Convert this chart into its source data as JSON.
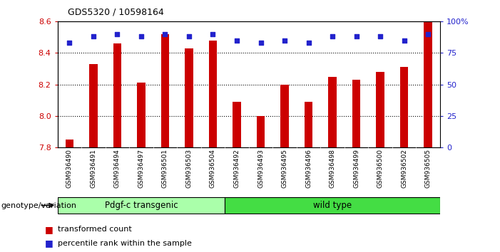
{
  "title": "GDS5320 / 10598164",
  "categories": [
    "GSM936490",
    "GSM936491",
    "GSM936494",
    "GSM936497",
    "GSM936501",
    "GSM936503",
    "GSM936504",
    "GSM936492",
    "GSM936493",
    "GSM936495",
    "GSM936496",
    "GSM936498",
    "GSM936499",
    "GSM936500",
    "GSM936502",
    "GSM936505"
  ],
  "bar_values": [
    7.85,
    8.33,
    8.46,
    8.21,
    8.52,
    8.43,
    8.48,
    8.09,
    8.0,
    8.2,
    8.09,
    8.25,
    8.23,
    8.28,
    8.31,
    8.6
  ],
  "dot_pct": [
    83,
    88,
    90,
    88,
    90,
    88,
    90,
    85,
    83,
    85,
    83,
    88,
    88,
    88,
    85,
    90
  ],
  "ylim_left": [
    7.8,
    8.6
  ],
  "ylim_right": [
    0,
    100
  ],
  "yticks_left": [
    7.8,
    8.0,
    8.2,
    8.4,
    8.6
  ],
  "yticks_right": [
    0,
    25,
    50,
    75,
    100
  ],
  "ytick_labels_right": [
    "0",
    "25",
    "50",
    "75",
    "100%"
  ],
  "bar_color": "#cc0000",
  "dot_color": "#2222cc",
  "group1_label": "Pdgf-c transgenic",
  "group2_label": "wild type",
  "group1_color": "#aaffaa",
  "group2_color": "#44dd44",
  "group1_count": 7,
  "group2_count": 9,
  "legend_label1": "transformed count",
  "legend_label2": "percentile rank within the sample",
  "genotype_label": "genotype/variation",
  "bg_color": "#ffffff",
  "plot_bg": "#ffffff",
  "tick_area_bg": "#cccccc",
  "bar_width": 0.35,
  "grid_lines": [
    8.0,
    8.2,
    8.4
  ],
  "left_tick_color": "#cc0000",
  "right_tick_color": "#2222cc"
}
